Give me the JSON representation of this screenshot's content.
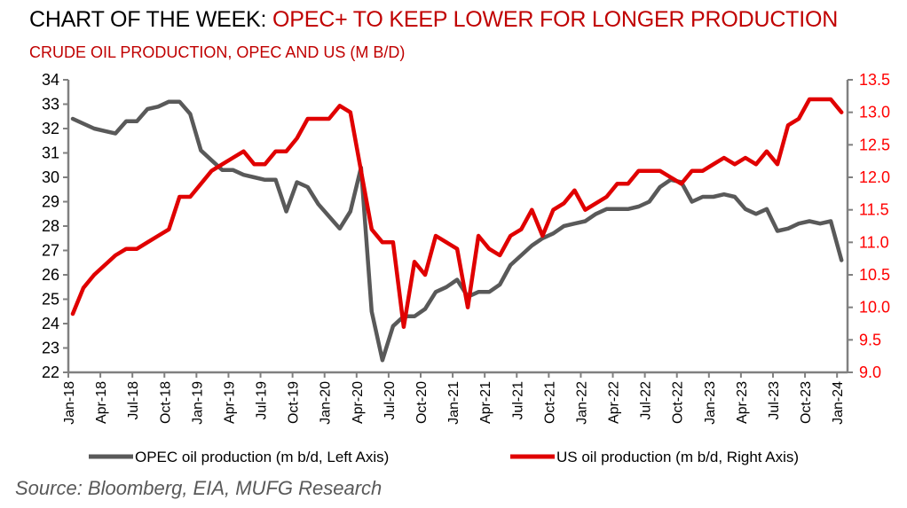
{
  "header": {
    "title_prefix": "CHART OF THE WEEK: ",
    "title_highlight": "OPEC+ TO KEEP LOWER FOR LONGER PRODUCTION",
    "subtitle": "CRUDE OIL PRODUCTION, OPEC AND US (M B/D)"
  },
  "source": "Source: Bloomberg, EIA, MUFG Research",
  "colors": {
    "opec": "#595959",
    "us": "#e00000",
    "axis": "#808080",
    "title_red": "#c00000"
  },
  "chart_data": {
    "type": "line",
    "title": "CRUDE OIL PRODUCTION, OPEC AND US (M B/D)",
    "xlabel": "",
    "x_start": "Jan-18",
    "x_end": "Jan-24",
    "frequency": "monthly",
    "x_tick_labels": [
      "Jan-18",
      "Apr-18",
      "Jul-18",
      "Oct-18",
      "Jan-19",
      "Apr-19",
      "Jul-19",
      "Oct-19",
      "Jan-20",
      "Apr-20",
      "Jul-20",
      "Oct-20",
      "Jan-21",
      "Apr-21",
      "Jul-21",
      "Oct-21",
      "Jan-22",
      "Apr-22",
      "Jul-22",
      "Oct-22",
      "Jan-23",
      "Apr-23",
      "Jul-23",
      "Oct-23",
      "Jan-24"
    ],
    "y_left": {
      "ylim": [
        22,
        34
      ],
      "ticks": [
        "34",
        "33",
        "32",
        "31",
        "30",
        "29",
        "28",
        "27",
        "26",
        "25",
        "24",
        "23",
        "22"
      ]
    },
    "y_right": {
      "ylim": [
        9.0,
        13.5
      ],
      "ticks": [
        "13.5",
        "13.0",
        "12.5",
        "12.0",
        "11.5",
        "11.0",
        "10.5",
        "10.0",
        "9.5",
        "9.0"
      ]
    },
    "grid": false,
    "legend_position": "bottom",
    "series": [
      {
        "name": "OPEC oil production (m b/d, Left Axis)",
        "axis": "left",
        "values": [
          32.4,
          32.2,
          32.0,
          31.9,
          31.8,
          32.3,
          32.3,
          32.8,
          32.9,
          33.1,
          33.1,
          32.6,
          31.1,
          30.7,
          30.3,
          30.3,
          30.1,
          30.0,
          29.9,
          29.9,
          28.6,
          29.8,
          29.6,
          28.9,
          28.4,
          27.9,
          28.6,
          30.4,
          24.5,
          22.5,
          23.9,
          24.3,
          24.3,
          24.6,
          25.3,
          25.5,
          25.8,
          25.1,
          25.3,
          25.3,
          25.6,
          26.4,
          26.8,
          27.2,
          27.5,
          27.7,
          28.0,
          28.1,
          28.2,
          28.5,
          28.7,
          28.7,
          28.7,
          28.8,
          29.0,
          29.6,
          29.9,
          29.8,
          29.0,
          29.2,
          29.2,
          29.3,
          29.2,
          28.7,
          28.5,
          28.7,
          27.8,
          27.9,
          28.1,
          28.2,
          28.1,
          28.2,
          26.6
        ]
      },
      {
        "name": "US oil production (m b/d, Right Axis)",
        "axis": "right",
        "values": [
          9.9,
          10.3,
          10.5,
          10.65,
          10.8,
          10.9,
          10.9,
          11.0,
          11.1,
          11.2,
          11.7,
          11.7,
          11.9,
          12.1,
          12.2,
          12.3,
          12.4,
          12.2,
          12.2,
          12.4,
          12.4,
          12.6,
          12.9,
          12.9,
          12.9,
          13.1,
          13.0,
          12.1,
          11.2,
          11.0,
          11.0,
          9.7,
          10.7,
          10.5,
          11.1,
          11.0,
          10.9,
          10.0,
          11.1,
          10.9,
          10.8,
          11.1,
          11.2,
          11.5,
          11.1,
          11.5,
          11.6,
          11.8,
          11.5,
          11.6,
          11.7,
          11.9,
          11.9,
          12.1,
          12.1,
          12.1,
          12.0,
          11.9,
          12.1,
          12.1,
          12.2,
          12.3,
          12.2,
          12.3,
          12.2,
          12.4,
          12.2,
          12.8,
          12.9,
          13.2,
          13.2,
          13.2,
          13.0
        ]
      }
    ]
  }
}
